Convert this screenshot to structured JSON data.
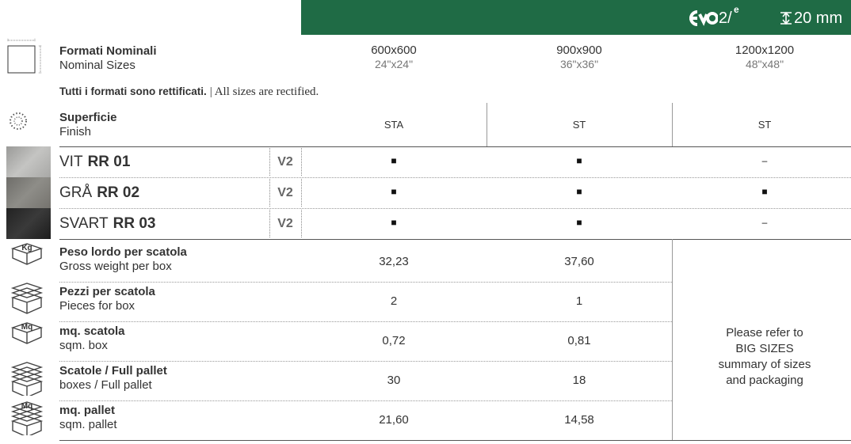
{
  "header": {
    "logo": "2/",
    "logo_sup": "e",
    "thickness": "20 mm"
  },
  "sizes": {
    "label_it": "Formati Nominali",
    "label_en": "Nominal Sizes",
    "columns": [
      {
        "metric": "600x600",
        "imperial": "24\"x24\""
      },
      {
        "metric": "900x900",
        "imperial": "36\"x36\""
      },
      {
        "metric": "1200x1200",
        "imperial": "48\"x48\""
      }
    ]
  },
  "note": {
    "bold": "Tutti i formati sono rettificati.",
    "rest": "| All sizes are rectified."
  },
  "finish": {
    "label_it": "Superficie",
    "label_en": "Finish",
    "values": [
      "STA",
      "ST",
      "ST"
    ]
  },
  "products": [
    {
      "prefix": "VIT",
      "code": "RR 01",
      "variant": "V2",
      "availability": [
        "■",
        "■",
        "–"
      ]
    },
    {
      "prefix": "GRÅ",
      "code": "RR 02",
      "variant": "V2",
      "availability": [
        "■",
        "■",
        "■"
      ]
    },
    {
      "prefix": "SVART",
      "code": "RR 03",
      "variant": "V2",
      "availability": [
        "■",
        "■",
        "–"
      ]
    }
  ],
  "packaging": {
    "rows": [
      {
        "icon": "Kg",
        "label_it": "Peso lordo per scatola",
        "label_en": "Gross weight per box",
        "values": [
          "32,23",
          "37,60"
        ]
      },
      {
        "label_it": "Pezzi per scatola",
        "label_en": "Pieces for box",
        "values": [
          "2",
          "1"
        ]
      },
      {
        "icon": "Mq",
        "label_it": "mq. scatola",
        "label_en": "sqm. box",
        "values": [
          "0,72",
          "0,81"
        ]
      },
      {
        "label_it": "Scatole / Full pallet",
        "label_en": "boxes / Full pallet",
        "values": [
          "30",
          "18"
        ]
      },
      {
        "icon": "Mq",
        "label_it": "mq. pallet",
        "label_en": "sqm. pallet",
        "values": [
          "21,60",
          "14,58"
        ]
      }
    ],
    "note": "Please refer to BIG SIZES summary of sizes and packaging"
  }
}
